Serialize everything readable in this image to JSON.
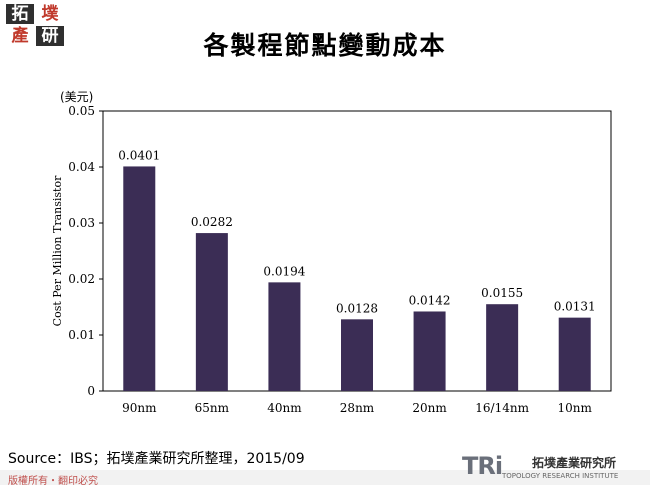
{
  "header": {
    "logo_text": "拓墣產研",
    "title": "各製程節點變動成本"
  },
  "chart_data": {
    "type": "bar",
    "title": "各製程節點變動成本",
    "unit_label": "(美元)",
    "xlabel": "",
    "ylabel": "Cost Per Million Transistor",
    "categories": [
      "90nm",
      "65nm",
      "40nm",
      "28nm",
      "20nm",
      "16/14nm",
      "10nm"
    ],
    "values": [
      0.0401,
      0.0282,
      0.0194,
      0.0128,
      0.0142,
      0.0155,
      0.0131
    ],
    "value_labels": [
      "0.0401",
      "0.0282",
      "0.0194",
      "0.0128",
      "0.0142",
      "0.0155",
      "0.0131"
    ],
    "ylim": [
      0,
      0.05
    ],
    "yticks": [
      0,
      0.01,
      0.02,
      0.03,
      0.04,
      0.05
    ],
    "ytick_labels": [
      "0",
      "0.01",
      "0.02",
      "0.03",
      "0.04",
      "0.05"
    ],
    "bar_color": "#3b2d55",
    "grid": false,
    "legend": "none"
  },
  "footer": {
    "source": "Source：IBS；拓墣產業研究所整理，2015/09",
    "copyright": "版權所有・翻印必究",
    "brand_mark": "TRi",
    "brand_name_cn": "拓墣產業研究所",
    "brand_name_en": "TOPOLOGY RESEARCH INSTITUTE"
  },
  "colors": {
    "logo_red": "#c0392b",
    "logo_dark": "#2f2f2f",
    "accent": "#c0504d"
  }
}
